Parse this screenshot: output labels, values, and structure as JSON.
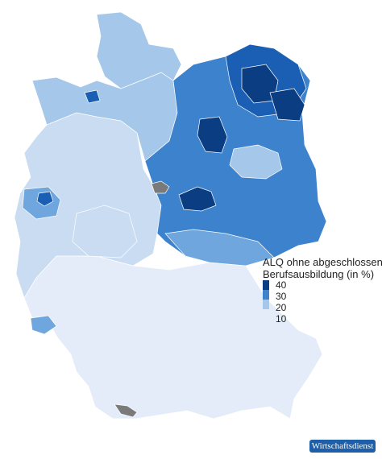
{
  "colors": {
    "very_light": "#e3ecf8",
    "light": "#c9dcf2",
    "mid_light": "#a4c7ea",
    "mid": "#6fa6dd",
    "strong": "#3d82cc",
    "dark": "#1a5fb4",
    "darkest": "#0b3d82",
    "missing": "#7a7a7a",
    "brand": "#1d5fa8"
  },
  "legend": {
    "title_line1": "ALQ ohne abgeschlossene",
    "title_line2": "Berufsausbildung (in %)",
    "ticks": [
      "40",
      "30",
      "20",
      "10"
    ]
  },
  "brand_label": "Wirtschaftsdienst"
}
